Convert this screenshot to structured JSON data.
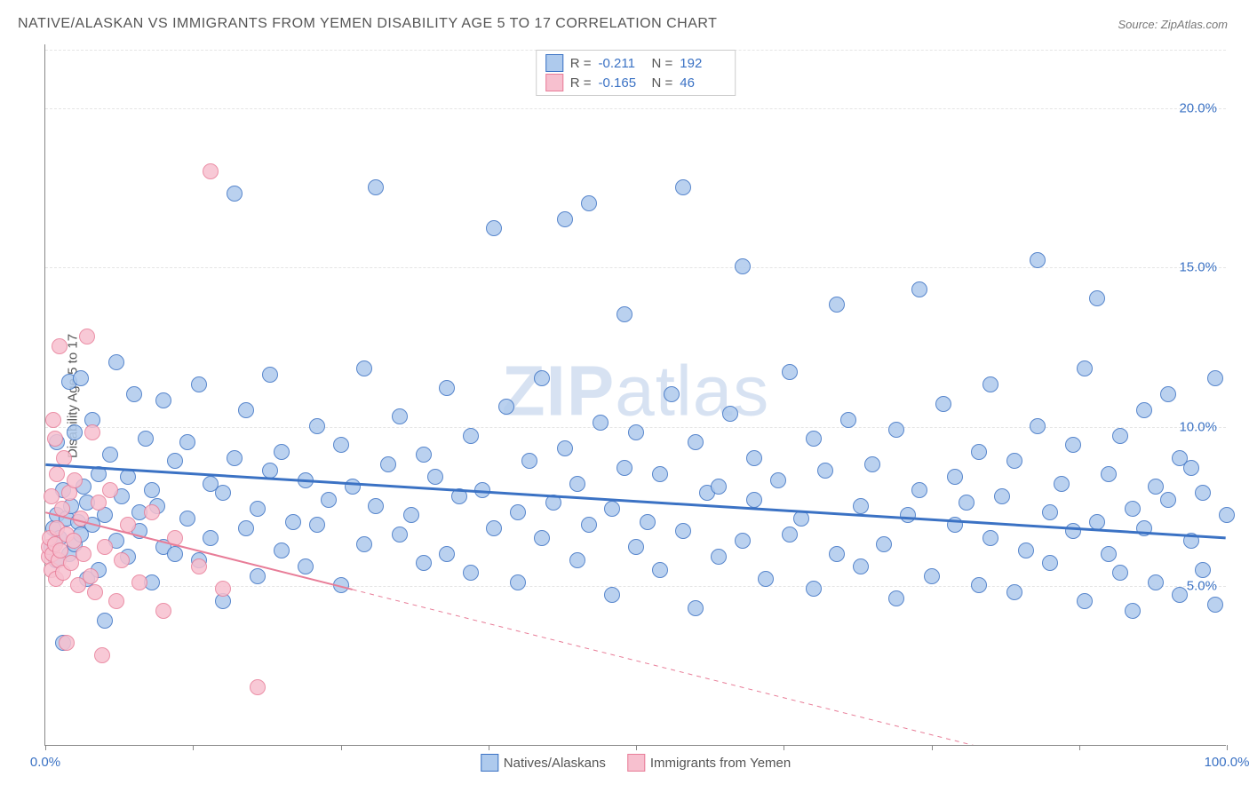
{
  "title": "NATIVE/ALASKAN VS IMMIGRANTS FROM YEMEN DISABILITY AGE 5 TO 17 CORRELATION CHART",
  "source_label": "Source: ZipAtlas.com",
  "ylabel": "Disability Age 5 to 17",
  "watermark": {
    "bold": "ZIP",
    "rest": "atlas"
  },
  "chart": {
    "type": "scatter",
    "xlim": [
      0,
      100
    ],
    "ylim": [
      0,
      22
    ],
    "x_ticks_minor": [
      0,
      12.5,
      25,
      37.5,
      50,
      62.5,
      75,
      87.5,
      100
    ],
    "x_ticks_labeled": [
      {
        "pos": 0,
        "label": "0.0%"
      },
      {
        "pos": 100,
        "label": "100.0%"
      }
    ],
    "y_ticks": [
      {
        "pos": 5,
        "label": "5.0%"
      },
      {
        "pos": 10,
        "label": "10.0%"
      },
      {
        "pos": 15,
        "label": "15.0%"
      },
      {
        "pos": 20,
        "label": "20.0%"
      }
    ],
    "grid_color": "#e5e5e5",
    "axis_color": "#888888",
    "background_color": "#ffffff",
    "marker_radius": 9,
    "marker_stroke_width": 1.2,
    "marker_fill_opacity": 0.35
  },
  "series": [
    {
      "id": "native",
      "label": "Natives/Alaskans",
      "stroke": "#3b72c4",
      "fill": "#aecaed",
      "R": "-0.211",
      "N": "192",
      "trend": {
        "y_at_x0": 8.8,
        "y_at_x100": 6.5,
        "width": 3,
        "solid_frac": 1.0
      },
      "points": [
        [
          0.5,
          6.2
        ],
        [
          0.7,
          6.8
        ],
        [
          0.9,
          5.8
        ],
        [
          1,
          7.2
        ],
        [
          1,
          9.5
        ],
        [
          1.2,
          6.5
        ],
        [
          1.5,
          8
        ],
        [
          1.5,
          3.2
        ],
        [
          1.8,
          7.1
        ],
        [
          2,
          6.0
        ],
        [
          2,
          11.4
        ],
        [
          2.2,
          7.5
        ],
        [
          2.5,
          6.3
        ],
        [
          2.5,
          9.8
        ],
        [
          2.8,
          7.0
        ],
        [
          3,
          6.6
        ],
        [
          3,
          11.5
        ],
        [
          3.2,
          8.1
        ],
        [
          3.5,
          5.2
        ],
        [
          3.5,
          7.6
        ],
        [
          4,
          6.9
        ],
        [
          4,
          10.2
        ],
        [
          4.5,
          8.5
        ],
        [
          4.5,
          5.5
        ],
        [
          5,
          7.2
        ],
        [
          5,
          3.9
        ],
        [
          5.5,
          9.1
        ],
        [
          6,
          6.4
        ],
        [
          6,
          12.0
        ],
        [
          6.5,
          7.8
        ],
        [
          7,
          5.9
        ],
        [
          7,
          8.4
        ],
        [
          7.5,
          11.0
        ],
        [
          8,
          6.7
        ],
        [
          8,
          7.3
        ],
        [
          8.5,
          9.6
        ],
        [
          9,
          5.1
        ],
        [
          9,
          8.0
        ],
        [
          9.5,
          7.5
        ],
        [
          10,
          6.2
        ],
        [
          10,
          10.8
        ],
        [
          11,
          8.9
        ],
        [
          11,
          6.0
        ],
        [
          12,
          7.1
        ],
        [
          12,
          9.5
        ],
        [
          13,
          5.8
        ],
        [
          13,
          11.3
        ],
        [
          14,
          8.2
        ],
        [
          14,
          6.5
        ],
        [
          15,
          7.9
        ],
        [
          15,
          4.5
        ],
        [
          16,
          9.0
        ],
        [
          16,
          17.3
        ],
        [
          17,
          6.8
        ],
        [
          17,
          10.5
        ],
        [
          18,
          7.4
        ],
        [
          18,
          5.3
        ],
        [
          19,
          8.6
        ],
        [
          19,
          11.6
        ],
        [
          20,
          6.1
        ],
        [
          20,
          9.2
        ],
        [
          21,
          7.0
        ],
        [
          22,
          8.3
        ],
        [
          22,
          5.6
        ],
        [
          23,
          10.0
        ],
        [
          23,
          6.9
        ],
        [
          24,
          7.7
        ],
        [
          25,
          9.4
        ],
        [
          25,
          5.0
        ],
        [
          26,
          8.1
        ],
        [
          27,
          6.3
        ],
        [
          27,
          11.8
        ],
        [
          28,
          7.5
        ],
        [
          28,
          17.5
        ],
        [
          29,
          8.8
        ],
        [
          30,
          6.6
        ],
        [
          30,
          10.3
        ],
        [
          31,
          7.2
        ],
        [
          32,
          9.1
        ],
        [
          32,
          5.7
        ],
        [
          33,
          8.4
        ],
        [
          34,
          6.0
        ],
        [
          34,
          11.2
        ],
        [
          35,
          7.8
        ],
        [
          36,
          9.7
        ],
        [
          36,
          5.4
        ],
        [
          37,
          8.0
        ],
        [
          38,
          6.8
        ],
        [
          38,
          16.2
        ],
        [
          39,
          10.6
        ],
        [
          40,
          7.3
        ],
        [
          40,
          5.1
        ],
        [
          41,
          8.9
        ],
        [
          42,
          6.5
        ],
        [
          42,
          11.5
        ],
        [
          43,
          7.6
        ],
        [
          44,
          9.3
        ],
        [
          44,
          16.5
        ],
        [
          45,
          8.2
        ],
        [
          45,
          5.8
        ],
        [
          46,
          6.9
        ],
        [
          46,
          17.0
        ],
        [
          47,
          10.1
        ],
        [
          48,
          7.4
        ],
        [
          48,
          4.7
        ],
        [
          49,
          13.5
        ],
        [
          49,
          8.7
        ],
        [
          50,
          6.2
        ],
        [
          50,
          9.8
        ],
        [
          51,
          7.0
        ],
        [
          52,
          8.5
        ],
        [
          52,
          5.5
        ],
        [
          53,
          11.0
        ],
        [
          54,
          6.7
        ],
        [
          54,
          17.5
        ],
        [
          55,
          9.5
        ],
        [
          55,
          4.3
        ],
        [
          56,
          7.9
        ],
        [
          57,
          8.1
        ],
        [
          57,
          5.9
        ],
        [
          58,
          10.4
        ],
        [
          59,
          6.4
        ],
        [
          59,
          15.0
        ],
        [
          60,
          7.7
        ],
        [
          60,
          9.0
        ],
        [
          61,
          5.2
        ],
        [
          62,
          8.3
        ],
        [
          63,
          6.6
        ],
        [
          63,
          11.7
        ],
        [
          64,
          7.1
        ],
        [
          65,
          9.6
        ],
        [
          65,
          4.9
        ],
        [
          66,
          8.6
        ],
        [
          67,
          6.0
        ],
        [
          67,
          13.8
        ],
        [
          68,
          10.2
        ],
        [
          69,
          7.5
        ],
        [
          69,
          5.6
        ],
        [
          70,
          8.8
        ],
        [
          71,
          6.3
        ],
        [
          72,
          9.9
        ],
        [
          72,
          4.6
        ],
        [
          73,
          7.2
        ],
        [
          74,
          8.0
        ],
        [
          74,
          14.3
        ],
        [
          75,
          5.3
        ],
        [
          76,
          10.7
        ],
        [
          77,
          6.9
        ],
        [
          77,
          8.4
        ],
        [
          78,
          7.6
        ],
        [
          79,
          5.0
        ],
        [
          79,
          9.2
        ],
        [
          80,
          6.5
        ],
        [
          80,
          11.3
        ],
        [
          81,
          7.8
        ],
        [
          82,
          8.9
        ],
        [
          82,
          4.8
        ],
        [
          83,
          6.1
        ],
        [
          84,
          10.0
        ],
        [
          84,
          15.2
        ],
        [
          85,
          7.3
        ],
        [
          85,
          5.7
        ],
        [
          86,
          8.2
        ],
        [
          87,
          6.7
        ],
        [
          87,
          9.4
        ],
        [
          88,
          4.5
        ],
        [
          88,
          11.8
        ],
        [
          89,
          7.0
        ],
        [
          89,
          14.0
        ],
        [
          90,
          8.5
        ],
        [
          90,
          6.0
        ],
        [
          91,
          5.4
        ],
        [
          91,
          9.7
        ],
        [
          92,
          7.4
        ],
        [
          92,
          4.2
        ],
        [
          93,
          10.5
        ],
        [
          93,
          6.8
        ],
        [
          94,
          8.1
        ],
        [
          94,
          5.1
        ],
        [
          95,
          7.7
        ],
        [
          95,
          11.0
        ],
        [
          96,
          4.7
        ],
        [
          96,
          9.0
        ],
        [
          97,
          6.4
        ],
        [
          97,
          8.7
        ],
        [
          98,
          5.5
        ],
        [
          98,
          7.9
        ],
        [
          99,
          4.4
        ],
        [
          99,
          11.5
        ],
        [
          100,
          7.2
        ]
      ]
    },
    {
      "id": "yemen",
      "label": "Immigrants from Yemen",
      "stroke": "#e87d98",
      "fill": "#f7c0cf",
      "R": "-0.165",
      "N": "46",
      "trend": {
        "y_at_x0": 7.3,
        "y_at_x100": -2.0,
        "width": 2,
        "solid_frac": 0.26
      },
      "points": [
        [
          0.3,
          5.9
        ],
        [
          0.3,
          6.2
        ],
        [
          0.4,
          6.5
        ],
        [
          0.5,
          7.8
        ],
        [
          0.5,
          5.5
        ],
        [
          0.6,
          6.0
        ],
        [
          0.7,
          10.2
        ],
        [
          0.8,
          6.3
        ],
        [
          0.8,
          9.6
        ],
        [
          0.9,
          5.2
        ],
        [
          1.0,
          6.8
        ],
        [
          1.0,
          8.5
        ],
        [
          1.1,
          5.8
        ],
        [
          1.2,
          12.5
        ],
        [
          1.3,
          6.1
        ],
        [
          1.4,
          7.4
        ],
        [
          1.5,
          5.4
        ],
        [
          1.6,
          9.0
        ],
        [
          1.8,
          6.6
        ],
        [
          1.8,
          3.2
        ],
        [
          2.0,
          7.9
        ],
        [
          2.2,
          5.7
        ],
        [
          2.4,
          6.4
        ],
        [
          2.5,
          8.3
        ],
        [
          2.8,
          5.0
        ],
        [
          3.0,
          7.1
        ],
        [
          3.2,
          6.0
        ],
        [
          3.5,
          12.8
        ],
        [
          3.8,
          5.3
        ],
        [
          4.0,
          9.8
        ],
        [
          4.2,
          4.8
        ],
        [
          4.5,
          7.6
        ],
        [
          4.8,
          2.8
        ],
        [
          5.0,
          6.2
        ],
        [
          5.5,
          8.0
        ],
        [
          6.0,
          4.5
        ],
        [
          6.5,
          5.8
        ],
        [
          7.0,
          6.9
        ],
        [
          8.0,
          5.1
        ],
        [
          9.0,
          7.3
        ],
        [
          10,
          4.2
        ],
        [
          11,
          6.5
        ],
        [
          13,
          5.6
        ],
        [
          15,
          4.9
        ],
        [
          18,
          1.8
        ],
        [
          14,
          18.0
        ]
      ]
    }
  ],
  "legend_top": {
    "r_label": "R =",
    "n_label": "N ="
  }
}
